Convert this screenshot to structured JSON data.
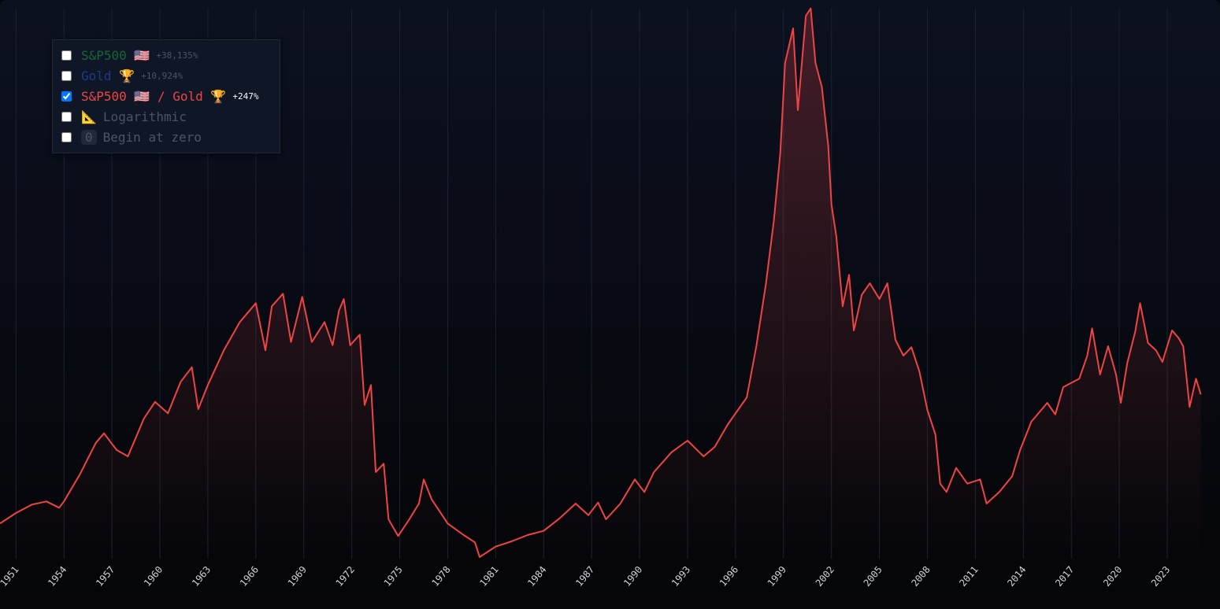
{
  "chart_data": {
    "type": "area",
    "x": [
      1950.0,
      1951,
      1952,
      1952.9,
      1953.7,
      1954,
      1955,
      1956,
      1956.5,
      1957.3,
      1958,
      1959,
      1959.7,
      1960.5,
      1961.3,
      1962,
      1962.4,
      1963,
      1964,
      1965,
      1966,
      1966.6,
      1967,
      1967.7,
      1968.2,
      1968.9,
      1969.5,
      1970.3,
      1970.8,
      1971.2,
      1971.5,
      1971.9,
      1972.5,
      1972.8,
      1973.2,
      1973.5,
      1974,
      1974.3,
      1974.9,
      1975.6,
      1976.2,
      1976.5,
      1977,
      1978,
      1979,
      1979.7,
      1980.0,
      1981,
      1982,
      1983,
      1984,
      1985,
      1986,
      1986.8,
      1987.4,
      1987.9,
      1988.8,
      1989.7,
      1990.3,
      1990.9,
      1992,
      1993,
      1994,
      1994.7,
      1995.5,
      1996,
      1996.7,
      1997.3,
      1997.9,
      1998.4,
      1998.8,
      1999.1,
      1999.6,
      1999.9,
      2000.4,
      2000.7,
      2001.0,
      2001.4,
      2001.8,
      2002.0,
      2002.3,
      2002.7,
      2003.1,
      2003.4,
      2003.9,
      2004.4,
      2005.0,
      2005.5,
      2006.0,
      2006.5,
      2007.0,
      2007.5,
      2008.0,
      2008.5,
      2008.8,
      2009.2,
      2009.8,
      2010.5,
      2011.3,
      2011.7,
      2012.5,
      2013.3,
      2013.8,
      2014.5,
      2015.5,
      2016.0,
      2016.5,
      2017.5,
      2018.0,
      2018.3,
      2018.8,
      2019.3,
      2019.8,
      2020.1,
      2020.5,
      2021.0,
      2021.3,
      2021.8,
      2022.3,
      2022.7,
      2023.3,
      2023.7,
      2024.0,
      2024.4,
      2024.8,
      2025.1
    ],
    "series": [
      {
        "name": "S&P500 🇺🇸 / Gold 🏆",
        "color": "#ef4444",
        "values": [
          0.5,
          0.6,
          0.68,
          0.71,
          0.65,
          0.71,
          0.97,
          1.27,
          1.36,
          1.2,
          1.14,
          1.5,
          1.66,
          1.55,
          1.85,
          1.99,
          1.59,
          1.82,
          2.15,
          2.42,
          2.6,
          2.15,
          2.57,
          2.69,
          2.23,
          2.66,
          2.23,
          2.42,
          2.2,
          2.53,
          2.64,
          2.2,
          2.3,
          1.63,
          1.82,
          0.99,
          1.07,
          0.54,
          0.38,
          0.54,
          0.69,
          0.92,
          0.73,
          0.5,
          0.39,
          0.32,
          0.18,
          0.28,
          0.33,
          0.39,
          0.43,
          0.55,
          0.69,
          0.58,
          0.7,
          0.54,
          0.69,
          0.92,
          0.8,
          0.99,
          1.18,
          1.29,
          1.14,
          1.23,
          1.44,
          1.55,
          1.7,
          2.19,
          2.78,
          3.39,
          4.03,
          4.89,
          5.22,
          4.44,
          5.34,
          5.41,
          4.89,
          4.66,
          4.1,
          3.54,
          3.24,
          2.57,
          2.87,
          2.34,
          2.68,
          2.79,
          2.64,
          2.79,
          2.25,
          2.1,
          2.18,
          1.95,
          1.58,
          1.35,
          0.88,
          0.8,
          1.03,
          0.88,
          0.92,
          0.69,
          0.8,
          0.95,
          1.2,
          1.47,
          1.65,
          1.54,
          1.8,
          1.88,
          2.1,
          2.36,
          1.92,
          2.19,
          1.92,
          1.65,
          2.03,
          2.33,
          2.6,
          2.22,
          2.15,
          2.04,
          2.34,
          2.27,
          2.19,
          1.61,
          1.88,
          1.73
        ]
      }
    ],
    "xlim": [
      1950,
      2026.3
    ],
    "ylim": [
      0.165,
      5.415
    ],
    "xticks": [
      1951,
      1954,
      1957,
      1960,
      1963,
      1966,
      1969,
      1972,
      1975,
      1978,
      1981,
      1984,
      1987,
      1990,
      1993,
      1996,
      1999,
      2002,
      2005,
      2008,
      2011,
      2014,
      2017,
      2020,
      2023
    ],
    "grid": true,
    "log_scale": false
  },
  "controls": [
    {
      "label": "S&P500 🇺🇸",
      "change": "+38,135%",
      "color": "#166534",
      "checked": false
    },
    {
      "label": "Gold 🏆",
      "change": "+10,924%",
      "color": "#1e3a8a",
      "checked": false
    },
    {
      "label": "S&P500 🇺🇸 / Gold 🏆",
      "change": "+247%",
      "color": "#ef4444",
      "checked": true
    },
    {
      "icon": "📐",
      "label": "Logarithmic",
      "color": "#4b5563",
      "checked": false
    },
    {
      "icon": "0",
      "label": "Begin at zero",
      "color": "#4b5563",
      "checked": false
    }
  ]
}
